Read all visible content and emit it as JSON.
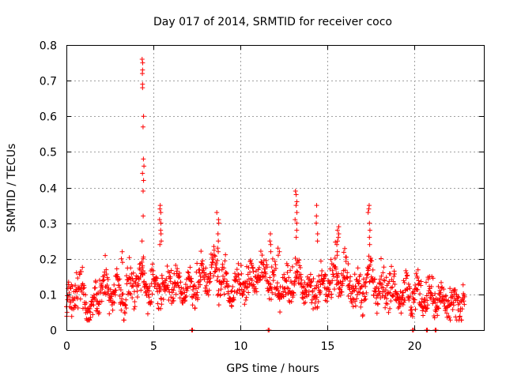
{
  "chart_data": {
    "type": "scatter",
    "title": "Day 017 of 2014, SRMTID for receiver coco",
    "xlabel": "GPS time / hours",
    "ylabel": "SRMTID / TECUs",
    "xlim": [
      0,
      24
    ],
    "ylim": [
      0,
      0.8
    ],
    "xticks": [
      0,
      5,
      10,
      15,
      20
    ],
    "yticks": [
      0,
      0.1,
      0.2,
      0.3,
      0.4,
      0.5,
      0.6,
      0.7,
      0.8
    ],
    "xtick_labels": [
      "0",
      "5",
      "10",
      "15",
      "20"
    ],
    "ytick_labels": [
      "0",
      "0.1",
      "0.2",
      "0.3",
      "0.4",
      "0.5",
      "0.6",
      "0.7",
      "0.8"
    ],
    "grid": true,
    "marker": "+",
    "color": "#ff0000",
    "trend": [
      [
        0.0,
        0.06
      ],
      [
        0.3,
        0.08
      ],
      [
        0.6,
        0.11
      ],
      [
        1.0,
        0.11
      ],
      [
        1.2,
        0.06
      ],
      [
        1.4,
        0.05
      ],
      [
        1.7,
        0.09
      ],
      [
        2.0,
        0.12
      ],
      [
        2.5,
        0.11
      ],
      [
        3.0,
        0.12
      ],
      [
        3.3,
        0.09
      ],
      [
        3.6,
        0.12
      ],
      [
        4.0,
        0.13
      ],
      [
        4.4,
        0.14
      ],
      [
        4.8,
        0.12
      ],
      [
        5.2,
        0.13
      ],
      [
        5.6,
        0.12
      ],
      [
        6.0,
        0.13
      ],
      [
        6.5,
        0.12
      ],
      [
        7.0,
        0.12
      ],
      [
        7.5,
        0.13
      ],
      [
        8.0,
        0.15
      ],
      [
        8.5,
        0.17
      ],
      [
        9.0,
        0.14
      ],
      [
        9.5,
        0.11
      ],
      [
        10.0,
        0.13
      ],
      [
        10.5,
        0.14
      ],
      [
        11.0,
        0.15
      ],
      [
        11.5,
        0.16
      ],
      [
        12.0,
        0.13
      ],
      [
        12.5,
        0.11
      ],
      [
        13.0,
        0.14
      ],
      [
        13.5,
        0.15
      ],
      [
        14.0,
        0.1
      ],
      [
        14.5,
        0.12
      ],
      [
        15.0,
        0.13
      ],
      [
        15.5,
        0.16
      ],
      [
        16.0,
        0.14
      ],
      [
        16.5,
        0.12
      ],
      [
        17.0,
        0.1
      ],
      [
        17.5,
        0.16
      ],
      [
        18.0,
        0.12
      ],
      [
        18.5,
        0.12
      ],
      [
        19.0,
        0.11
      ],
      [
        19.5,
        0.1
      ],
      [
        20.0,
        0.1
      ],
      [
        20.5,
        0.1
      ],
      [
        21.0,
        0.09
      ],
      [
        21.5,
        0.08
      ],
      [
        22.0,
        0.07
      ],
      [
        22.5,
        0.07
      ],
      [
        22.9,
        0.07
      ]
    ],
    "spikes": [
      {
        "x": 4.4,
        "values": [
          0.76,
          0.75,
          0.73,
          0.72,
          0.69,
          0.68,
          0.6,
          0.57,
          0.48,
          0.46,
          0.44,
          0.42,
          0.39,
          0.32,
          0.25,
          0.2,
          0.18
        ]
      },
      {
        "x": 5.4,
        "values": [
          0.35,
          0.34,
          0.33,
          0.31,
          0.3,
          0.28,
          0.27,
          0.25,
          0.24
        ]
      },
      {
        "x": 8.7,
        "values": [
          0.33,
          0.31,
          0.3,
          0.27,
          0.25,
          0.23,
          0.22
        ]
      },
      {
        "x": 13.2,
        "values": [
          0.39,
          0.38,
          0.36,
          0.35,
          0.33,
          0.31,
          0.3,
          0.28,
          0.26
        ]
      },
      {
        "x": 14.4,
        "values": [
          0.35,
          0.32,
          0.3,
          0.27,
          0.25
        ]
      },
      {
        "x": 15.6,
        "values": [
          0.29,
          0.28,
          0.27,
          0.26,
          0.25,
          0.24,
          0.22,
          0.21
        ]
      },
      {
        "x": 17.4,
        "values": [
          0.35,
          0.34,
          0.33,
          0.3,
          0.28,
          0.26,
          0.24
        ]
      },
      {
        "x": 11.7,
        "values": [
          0.27,
          0.25,
          0.24,
          0.22
        ]
      },
      {
        "x": 12.2,
        "values": [
          0.23,
          0.22,
          0.21
        ]
      },
      {
        "x": 3.2,
        "values": [
          0.22,
          0.2,
          0.19
        ]
      }
    ],
    "zeros": [
      7.2,
      11.6,
      19.9,
      20.7,
      21.2
    ]
  }
}
